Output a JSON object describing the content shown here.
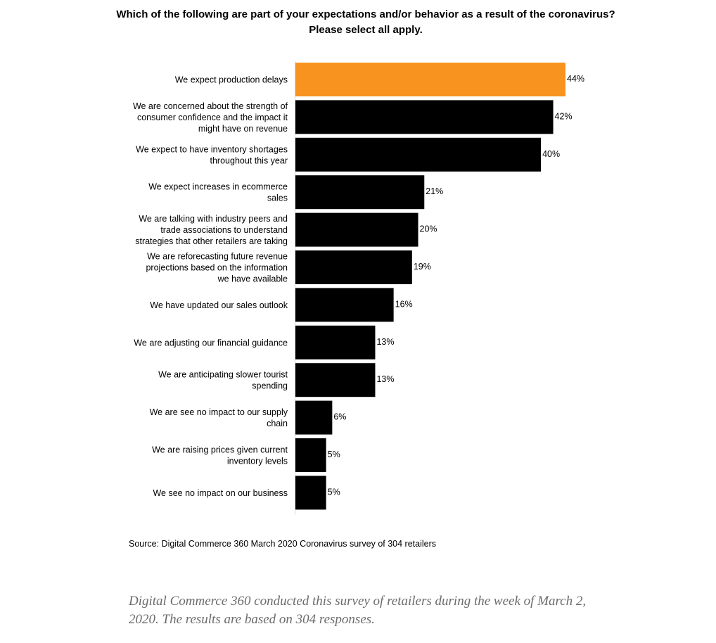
{
  "chart_data": {
    "type": "bar",
    "orientation": "horizontal",
    "title": "Which of the following are part of your expectations and/or behavior as a result of the coronavirus? Please select all apply.",
    "categories": [
      "We expect production delays",
      "We are concerned about the strength of consumer confidence and the impact it might have on revenue",
      "We expect to have inventory shortages throughout this year",
      "We expect increases in ecommerce sales",
      "We are talking with industry peers and trade associations to understand strategies that other retailers are taking",
      "We are reforecasting future revenue projections based on the information we have available",
      "We have updated our sales outlook",
      "We are adjusting our financial guidance",
      "We are anticipating slower tourist spending",
      "We are see no impact to our supply chain",
      "We are raising prices given current inventory levels",
      "We see no impact on our business"
    ],
    "category_lines": [
      [
        "We expect production delays"
      ],
      [
        "We are concerned about the strength of",
        "consumer confidence and the impact it",
        "might have on revenue"
      ],
      [
        "We expect to have inventory shortages",
        "throughout this year"
      ],
      [
        "We expect increases in ecommerce",
        "sales"
      ],
      [
        "We are talking with industry peers and",
        "trade associations to understand",
        "strategies that other retailers are taking"
      ],
      [
        "We are reforecasting future revenue",
        "projections based on the information",
        "we have available"
      ],
      [
        "We have updated our sales outlook"
      ],
      [
        "We are adjusting our financial guidance"
      ],
      [
        "We are anticipating slower tourist",
        "spending"
      ],
      [
        "We are see no impact to our supply",
        "chain"
      ],
      [
        "We are raising prices given current",
        "inventory levels"
      ],
      [
        "We see no impact on our business"
      ]
    ],
    "values": [
      44,
      42,
      40,
      21,
      20,
      19,
      16,
      13,
      13,
      6,
      5,
      5
    ],
    "value_labels": [
      "44%",
      "42%",
      "40%",
      "21%",
      "20%",
      "19%",
      "16%",
      "13%",
      "13%",
      "6%",
      "5%",
      "5%"
    ],
    "unit": "%",
    "xlim": [
      0,
      44
    ],
    "highlight_index": 0,
    "colors": {
      "highlight": "#F7931E",
      "default": "#000000",
      "axis": "#d9d9d9"
    },
    "xlabel": "",
    "ylabel": "",
    "grid": false,
    "legend": "none"
  },
  "source_note": "Source: Digital Commerce 360  March 2020 Coronavirus survey  of 304 retailers",
  "caption": "Digital Commerce 360 conducted this survey of retailers during the week of March 2, 2020. The results are based on 304 responses."
}
